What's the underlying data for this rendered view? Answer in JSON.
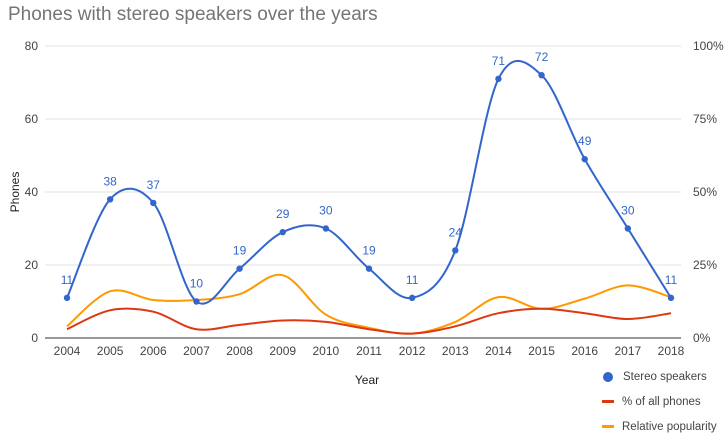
{
  "chart_data": {
    "type": "line",
    "title": "Phones with stereo speakers over the years",
    "xlabel": "Year",
    "ylabel": "Phones",
    "categories": [
      "2004",
      "2005",
      "2006",
      "2007",
      "2008",
      "2009",
      "2010",
      "2011",
      "2012",
      "2013",
      "2014",
      "2015",
      "2016",
      "2017",
      "2018"
    ],
    "ylim": [
      0,
      80
    ],
    "y_ticks": [
      "0",
      "20",
      "40",
      "60",
      "80"
    ],
    "y2lim": [
      0,
      100
    ],
    "y2_ticks": [
      "0%",
      "25%",
      "50%",
      "75%",
      "100%"
    ],
    "grid": true,
    "legend": "bottom-right",
    "series": [
      {
        "name": "Stereo speakers",
        "axis": "left",
        "color": "#3366cc",
        "marker": "dot",
        "values": [
          11,
          38,
          37,
          10,
          19,
          29,
          30,
          19,
          11,
          24,
          71,
          72,
          49,
          30,
          11
        ],
        "labels": [
          "11",
          "38",
          "37",
          "10",
          "19",
          "29",
          "30",
          "19",
          "11",
          "24",
          "71",
          "72",
          "49",
          "30",
          "11"
        ]
      },
      {
        "name": "% of all phones",
        "axis": "right",
        "color": "#dc3912",
        "values": [
          3,
          9.5,
          9,
          3,
          4.5,
          6,
          5.5,
          3,
          1.5,
          4,
          8.5,
          10,
          8.5,
          6.5,
          8.5
        ]
      },
      {
        "name": "Relative popularity",
        "axis": "right",
        "color": "#ff9900",
        "values": [
          4,
          16,
          13,
          13,
          15,
          21.5,
          8,
          3.5,
          1.5,
          5.5,
          14,
          10,
          13.5,
          18,
          14
        ]
      }
    ]
  }
}
